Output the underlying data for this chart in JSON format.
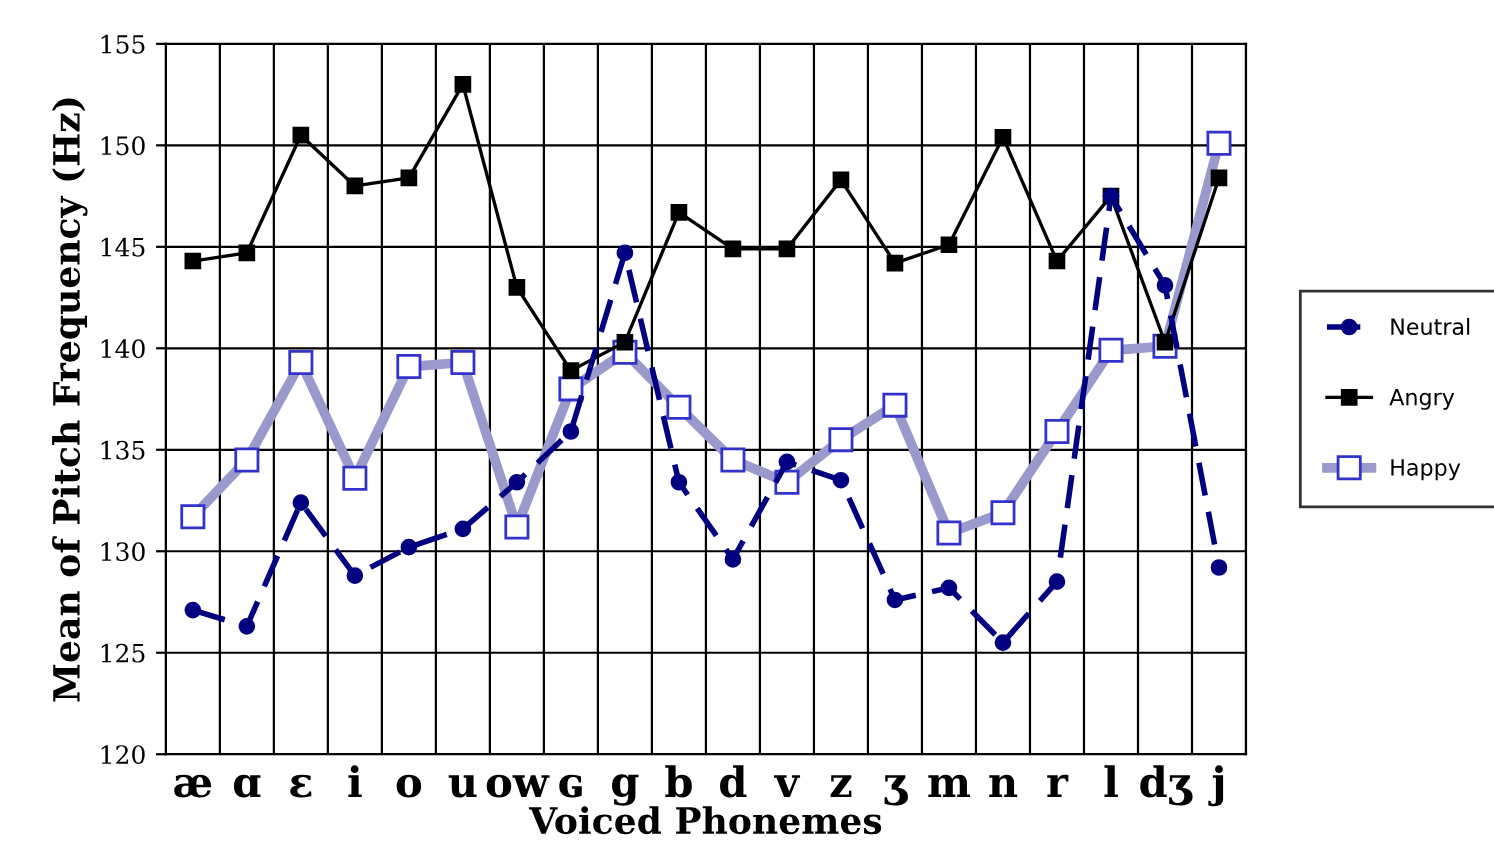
{
  "chart_data": {
    "type": "line",
    "xlabel": "Voiced Phonemes",
    "ylabel": "Mean of Pitch Frequency (Hz)",
    "categories": [
      "æ",
      "ɑ",
      "ɛ",
      "i",
      "o",
      "u",
      "ow",
      "ɢ",
      "g",
      "b",
      "d",
      "v",
      "z",
      "ʒ",
      "m",
      "n",
      "r",
      "l",
      "dʒ",
      "j"
    ],
    "series": [
      {
        "name": "Neutral",
        "color": "#000080",
        "marker": "circle",
        "line_style": "dashed",
        "values": [
          127.1,
          126.3,
          132.4,
          128.8,
          130.2,
          131.1,
          133.4,
          135.9,
          144.7,
          133.4,
          129.6,
          134.4,
          133.5,
          127.6,
          128.2,
          125.5,
          128.5,
          147.5,
          143.1,
          129.2
        ]
      },
      {
        "name": "Angry",
        "color": "#000000",
        "marker": "square",
        "line_style": "solid",
        "values": [
          144.3,
          144.7,
          150.5,
          148.0,
          148.4,
          153.0,
          143.0,
          138.9,
          140.3,
          146.7,
          144.9,
          144.9,
          148.3,
          144.2,
          145.1,
          150.4,
          144.3,
          147.5,
          140.3,
          148.4
        ]
      },
      {
        "name": "Happy",
        "color": "#9999cc",
        "marker": "square",
        "line_style": "solid",
        "values": [
          131.7,
          134.5,
          139.3,
          133.6,
          139.1,
          139.3,
          131.2,
          138.0,
          139.8,
          137.1,
          134.5,
          133.4,
          135.5,
          137.2,
          130.9,
          131.9,
          135.9,
          139.9,
          140.1,
          150.1
        ]
      }
    ],
    "ylim": [
      120,
      155
    ],
    "yticks": [
      120,
      125,
      130,
      135,
      140,
      145,
      150,
      155
    ],
    "grid": true,
    "legend": "right"
  }
}
